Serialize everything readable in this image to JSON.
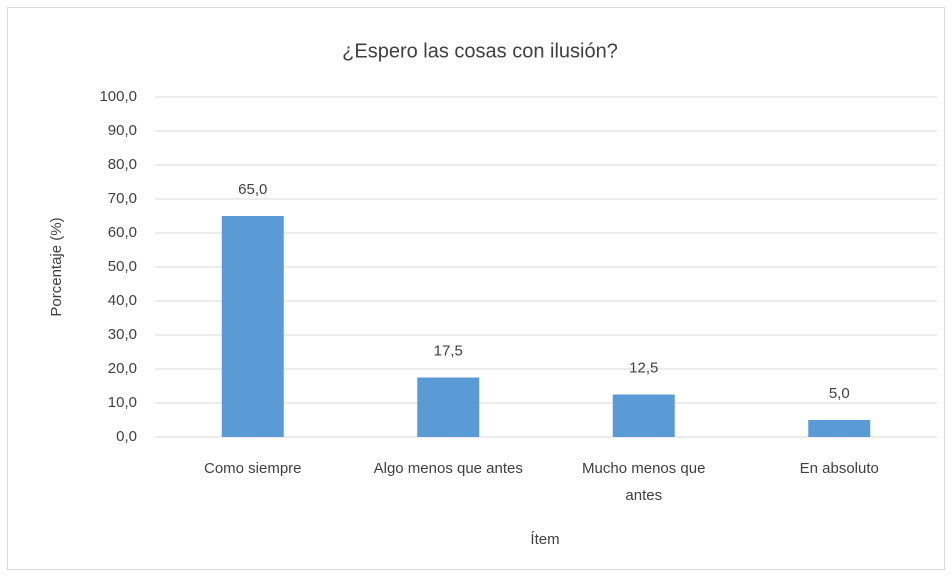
{
  "chart_data": {
    "type": "bar",
    "title": "¿Espero las cosas con ilusión?",
    "x_label": "Ítem",
    "y_label": "Porcentaje (%)",
    "categories": [
      "Como siempre",
      "Algo menos que antes",
      "Mucho menos que antes",
      "En absoluto"
    ],
    "values": [
      65.0,
      17.5,
      12.5,
      5.0
    ],
    "value_labels": [
      "65,0",
      "17,5",
      "12,5",
      "5,0"
    ],
    "color": "#5b9bd5",
    "ylim": [
      0,
      100
    ],
    "yticks": [
      {
        "value": 0,
        "label": "0,0"
      },
      {
        "value": 10,
        "label": "10,0"
      },
      {
        "value": 20,
        "label": "20,0"
      },
      {
        "value": 30,
        "label": "30,0"
      },
      {
        "value": 40,
        "label": "40,0"
      },
      {
        "value": 50,
        "label": "50,0"
      },
      {
        "value": 60,
        "label": "60,0"
      },
      {
        "value": 70,
        "label": "70,0"
      },
      {
        "value": 80,
        "label": "80,0"
      },
      {
        "value": 90,
        "label": "90,0"
      },
      {
        "value": 100,
        "label": "100,0"
      }
    ],
    "grid": true
  }
}
